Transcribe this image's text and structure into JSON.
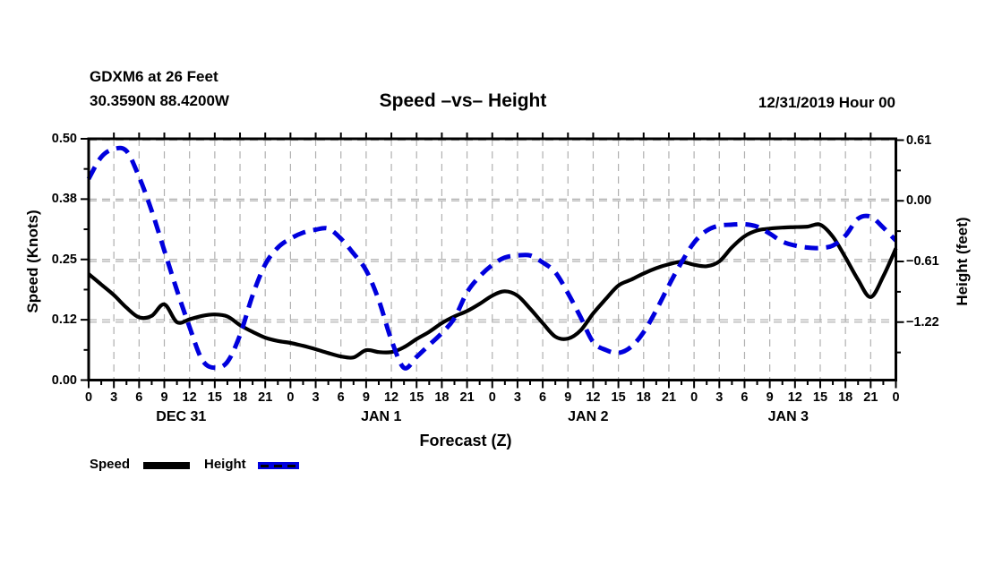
{
  "header": {
    "station_line": "GDXM6 at 26 Feet",
    "coords_line": "30.3590N 88.4200W",
    "title": "Speed –vs– Height",
    "datetime": "12/31/2019 Hour 00"
  },
  "colors": {
    "speed_line": "#000000",
    "height_line": "#0000dd",
    "gridline": "#b0b0b0",
    "background": "#ffffff",
    "text": "#000000"
  },
  "chart_data": {
    "type": "line",
    "title": "Speed –vs– Height",
    "xlabel": "Forecast (Z)",
    "xlim_hours": [
      0,
      96
    ],
    "grid": true,
    "x_tick_labels": [
      "0",
      "3",
      "6",
      "9",
      "12",
      "15",
      "18",
      "21",
      "0",
      "3",
      "6",
      "9",
      "12",
      "15",
      "18",
      "21",
      "0",
      "3",
      "6",
      "9",
      "12",
      "15",
      "18",
      "21",
      "0",
      "3",
      "6",
      "9",
      "12",
      "15",
      "18",
      "21",
      "0"
    ],
    "x_tick_step_hours": 3,
    "x_minor_tick_step_hours": 1.5,
    "day_labels": [
      {
        "label": "DEC 31",
        "center_hour": 11
      },
      {
        "label": "JAN 1",
        "center_hour": 34.8
      },
      {
        "label": "JAN 2",
        "center_hour": 59.4
      },
      {
        "label": "JAN 3",
        "center_hour": 83.2
      }
    ],
    "left_axis": {
      "label": "Speed (Knots)",
      "range": [
        0.0,
        0.5
      ],
      "ticks": [
        {
          "value": 0.5,
          "label": "0.50"
        },
        {
          "value": 0.375,
          "label": "0.38"
        },
        {
          "value": 0.25,
          "label": "0.25"
        },
        {
          "value": 0.125,
          "label": "0.12"
        },
        {
          "value": 0.0,
          "label": "0.00"
        }
      ]
    },
    "right_axis": {
      "label": "Height (feet)",
      "ticks": [
        {
          "value": 0.61,
          "label": "0.61"
        },
        {
          "value": 0.0,
          "label": "0.00"
        },
        {
          "value": -0.61,
          "label": "−0.61"
        },
        {
          "value": -1.22,
          "label": "−1.22"
        }
      ],
      "minor_tick_values": [
        0.305,
        -0.305,
        -0.915,
        -1.525
      ]
    },
    "series": [
      {
        "name": "Speed",
        "axis": "left",
        "style": "solid",
        "color": "#000000",
        "x_step_hours": 1.5,
        "values": [
          0.22,
          0.198,
          0.176,
          0.15,
          0.13,
          0.133,
          0.157,
          0.12,
          0.126,
          0.133,
          0.136,
          0.132,
          0.114,
          0.1,
          0.088,
          0.081,
          0.077,
          0.071,
          0.064,
          0.056,
          0.049,
          0.047,
          0.062,
          0.058,
          0.058,
          0.068,
          0.085,
          0.1,
          0.118,
          0.132,
          0.143,
          0.158,
          0.175,
          0.184,
          0.175,
          0.148,
          0.118,
          0.09,
          0.086,
          0.103,
          0.138,
          0.168,
          0.196,
          0.208,
          0.221,
          0.232,
          0.24,
          0.245,
          0.239,
          0.236,
          0.246,
          0.275,
          0.298,
          0.31,
          0.314,
          0.316,
          0.317,
          0.318,
          0.322,
          0.297,
          0.254,
          0.208,
          0.172,
          0.215,
          0.273
        ]
      },
      {
        "name": "Height",
        "axis": "right",
        "style": "dashed",
        "color": "#0000dd",
        "x_step_hours": 1.5,
        "values": [
          0.22,
          0.44,
          0.52,
          0.5,
          0.24,
          -0.1,
          -0.5,
          -0.9,
          -1.27,
          -1.6,
          -1.68,
          -1.62,
          -1.35,
          -0.95,
          -0.64,
          -0.47,
          -0.38,
          -0.32,
          -0.29,
          -0.28,
          -0.38,
          -0.53,
          -0.7,
          -1.0,
          -1.4,
          -1.68,
          -1.57,
          -1.45,
          -1.33,
          -1.18,
          -0.92,
          -0.76,
          -0.645,
          -0.57,
          -0.55,
          -0.55,
          -0.62,
          -0.72,
          -0.93,
          -1.17,
          -1.42,
          -1.5,
          -1.53,
          -1.47,
          -1.32,
          -1.1,
          -0.85,
          -0.62,
          -0.42,
          -0.3,
          -0.25,
          -0.24,
          -0.235,
          -0.26,
          -0.33,
          -0.41,
          -0.45,
          -0.47,
          -0.475,
          -0.45,
          -0.35,
          -0.18,
          -0.16,
          -0.27,
          -0.4
        ]
      }
    ],
    "legend": {
      "position": "bottom-left",
      "entries": [
        {
          "label": "Speed",
          "style": "solid",
          "color": "#000000"
        },
        {
          "label": "Height",
          "style": "dashed",
          "color": "#0000dd"
        }
      ]
    }
  }
}
